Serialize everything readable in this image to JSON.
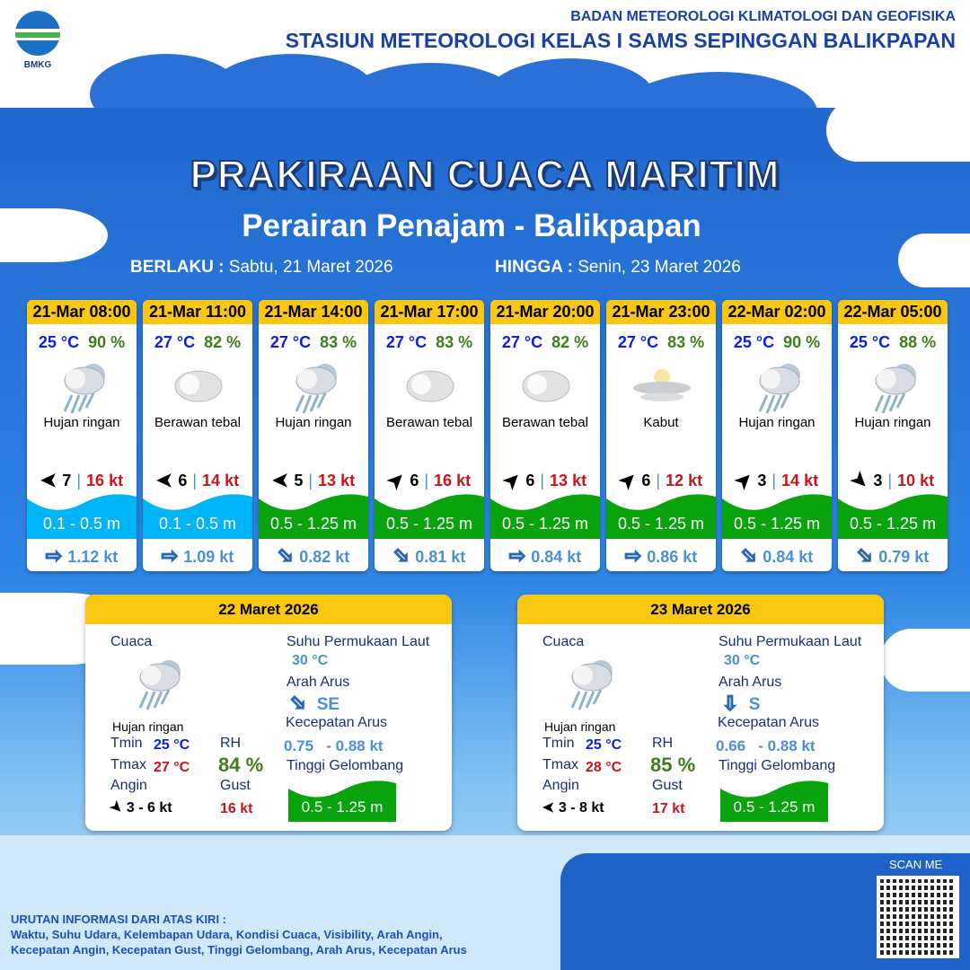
{
  "header": {
    "logo_text": "BMKG",
    "org": "BADAN METEOROLOGI KLIMATOLOGI DAN GEOFISIKA",
    "station": "STASIUN METEOROLOGI KELAS I SAMS SEPINGGAN BALIKPAPAN"
  },
  "title": "PRAKIRAAN CUACA MARITIM",
  "subtitle": "Perairan Penajam - Balikpapan",
  "validity": {
    "from_label": "BERLAKU :",
    "from": "Sabtu, 21 Maret 2026",
    "to_label": "HINGGA :",
    "to": "Senin, 23 Maret 2026"
  },
  "colors": {
    "header_yellow": "#f9c70f",
    "wave_low": "#00b4f5",
    "wave_moderate": "#08a30d"
  },
  "forecasts": [
    {
      "time": "21-Mar 08:00",
      "temp": "25 °C",
      "rh": "90 %",
      "icon": "rain-cloud-icon",
      "condition": "Hujan ringan",
      "wind_dir": "N",
      "wind_speed": "7",
      "gust": "16 kt",
      "wave": "0.1 - 0.5 m",
      "wave_level": "low",
      "current_dir": "E",
      "current_speed": "1.12 kt"
    },
    {
      "time": "21-Mar 11:00",
      "temp": "27 °C",
      "rh": "82 %",
      "icon": "cloud-icon",
      "condition": "Berawan tebal",
      "wind_dir": "N",
      "wind_speed": "6",
      "gust": "14 kt",
      "wave": "0.1 - 0.5 m",
      "wave_level": "low",
      "current_dir": "E",
      "current_speed": "1.09 kt"
    },
    {
      "time": "21-Mar 14:00",
      "temp": "27 °C",
      "rh": "83 %",
      "icon": "rain-cloud-icon",
      "condition": "Hujan ringan",
      "wind_dir": "N",
      "wind_speed": "5",
      "gust": "13 kt",
      "wave": "0.5 - 1.25 m",
      "wave_level": "moderate",
      "current_dir": "SE",
      "current_speed": "0.82 kt"
    },
    {
      "time": "21-Mar 17:00",
      "temp": "27 °C",
      "rh": "83 %",
      "icon": "cloud-icon",
      "condition": "Berawan tebal",
      "wind_dir": "NE",
      "wind_speed": "6",
      "gust": "16 kt",
      "wave": "0.5 - 1.25 m",
      "wave_level": "moderate",
      "current_dir": "SE",
      "current_speed": "0.81 kt"
    },
    {
      "time": "21-Mar 20:00",
      "temp": "27 °C",
      "rh": "82 %",
      "icon": "cloud-icon",
      "condition": "Berawan tebal",
      "wind_dir": "NE",
      "wind_speed": "6",
      "gust": "13 kt",
      "wave": "0.5 - 1.25 m",
      "wave_level": "moderate",
      "current_dir": "E",
      "current_speed": "0.84 kt"
    },
    {
      "time": "21-Mar 23:00",
      "temp": "27 °C",
      "rh": "83 %",
      "icon": "fog-icon",
      "condition": "Kabut",
      "wind_dir": "NE",
      "wind_speed": "6",
      "gust": "12 kt",
      "wave": "0.5 - 1.25 m",
      "wave_level": "moderate",
      "current_dir": "E",
      "current_speed": "0.86 kt"
    },
    {
      "time": "22-Mar 02:00",
      "temp": "25 °C",
      "rh": "90 %",
      "icon": "rain-cloud-icon",
      "condition": "Hujan ringan",
      "wind_dir": "NE",
      "wind_speed": "3",
      "gust": "14 kt",
      "wave": "0.5 - 1.25 m",
      "wave_level": "moderate",
      "current_dir": "SE",
      "current_speed": "0.84 kt"
    },
    {
      "time": "22-Mar 05:00",
      "temp": "25 °C",
      "rh": "88 %",
      "icon": "rain-cloud-icon",
      "condition": "Hujan ringan",
      "wind_dir": "SE",
      "wind_speed": "3",
      "gust": "10 kt",
      "wave": "0.5 - 1.25 m",
      "wave_level": "moderate",
      "current_dir": "SE",
      "current_speed": "0.79 kt"
    }
  ],
  "labels": {
    "weather": "Cuaca",
    "tmin": "Tmin",
    "tmax": "Tmax",
    "wind": "Angin",
    "rh": "RH",
    "gust": "Gust",
    "sst": "Suhu Permukaan Laut",
    "current_dir": "Arah Arus",
    "current_speed": "Kecepatan Arus",
    "wave": "Tinggi Gelombang"
  },
  "daily": [
    {
      "date": "22 Maret 2026",
      "condition": "Hujan ringan",
      "tmin": "25 °C",
      "tmax": "27 °C",
      "wind_dir": "SE",
      "wind": "3  - 6 kt",
      "rh": "84 %",
      "gust": "16 kt",
      "sst": "30 °C",
      "current_dir_arrow": "SE",
      "current_dir": "SE",
      "current_min": "0.75",
      "current_max": "- 0.88 kt",
      "wave": "0.5 - 1.25 m"
    },
    {
      "date": "23 Maret 2026",
      "condition": "Hujan ringan",
      "tmin": "25 °C",
      "tmax": "28 °C",
      "wind_dir": "N",
      "wind": "3  - 8 kt",
      "rh": "85 %",
      "gust": "17 kt",
      "sst": "30 °C",
      "current_dir_arrow": "S",
      "current_dir": "S",
      "current_min": "0.66",
      "current_max": "- 0.88 kt",
      "wave": "0.5 - 1.25 m"
    }
  ],
  "footer": {
    "scan": "SCAN ME",
    "legend_title": "URUTAN INFORMASI DARI ATAS KIRI :",
    "legend_line1": "Waktu, Suhu Udara, Kelembapan Udara, Kondisi Cuaca, Visibility, Arah Angin,",
    "legend_line2": "Kecepatan Angin, Kecepatan Gust, Tinggi Gelombang, Arah Arus, Kecepatan Arus"
  }
}
